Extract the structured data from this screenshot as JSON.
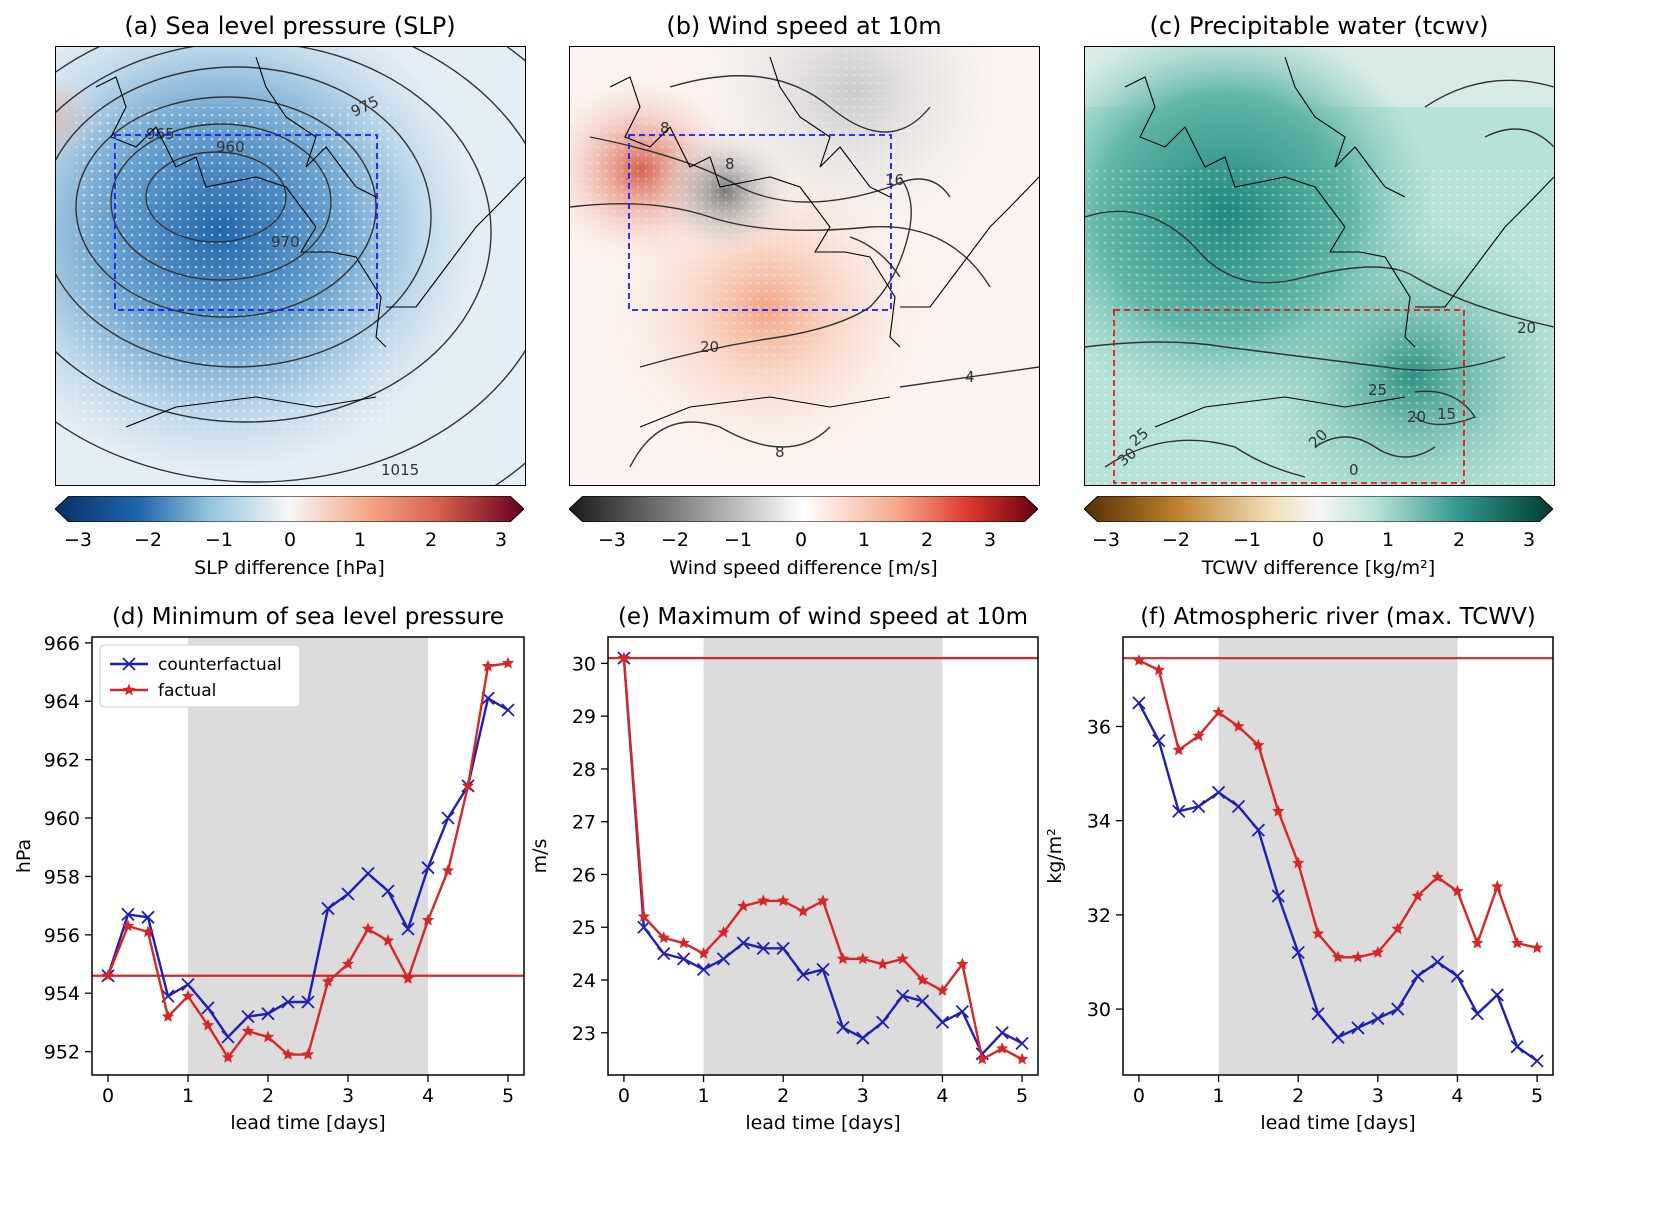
{
  "maps": [
    {
      "title": "(a) Sea level pressure (SLP)",
      "colorbar_label": "SLP difference [hPa]",
      "ticks": [
        "−3",
        "−2",
        "−1",
        "0",
        "1",
        "2",
        "3"
      ],
      "contour_labels": [
        "965",
        "960",
        "975",
        "970",
        "1015"
      ],
      "palette": "rdbu",
      "box_color": "#1a1aff"
    },
    {
      "title": "(b) Wind speed at 10m",
      "colorbar_label": "Wind speed difference [m/s]",
      "ticks": [
        "−3",
        "−2",
        "−1",
        "0",
        "1",
        "2",
        "3"
      ],
      "contour_labels": [
        "8",
        "8",
        "16",
        "20",
        "4",
        "8"
      ],
      "palette": "greyred",
      "box_color": "#1a1aff"
    },
    {
      "title": "(c) Precipitable water (tcwv)",
      "colorbar_label": "TCWV difference [kg/m²]",
      "ticks": [
        "−3",
        "−2",
        "−1",
        "0",
        "1",
        "2",
        "3"
      ],
      "contour_labels": [
        "20",
        "25",
        "20",
        "15",
        "20",
        "25",
        "30",
        "0"
      ],
      "palette": "brbg",
      "box_color": "#e01b1b"
    }
  ],
  "chart_data": [
    {
      "type": "line",
      "title": "(d) Minimum of sea level pressure",
      "xlabel": "lead time [days]",
      "ylabel": "hPa",
      "xlim": [
        -0.2,
        5.2
      ],
      "ylim": [
        951.2,
        966.2
      ],
      "xticks": [
        0,
        1,
        2,
        3,
        4,
        5
      ],
      "yticks": [
        952,
        954,
        956,
        958,
        960,
        962,
        964,
        966
      ],
      "shaded_x": [
        1,
        4
      ],
      "hline": 954.6,
      "legend": "top-left",
      "x": [
        0,
        0.25,
        0.5,
        0.75,
        1,
        1.25,
        1.5,
        1.75,
        2,
        2.25,
        2.5,
        2.75,
        3,
        3.25,
        3.5,
        3.75,
        4,
        4.25,
        4.5,
        4.75,
        5
      ],
      "series": [
        {
          "name": "counterfactual",
          "color": "#1f1fb4",
          "marker": "x",
          "values": [
            954.6,
            956.7,
            956.6,
            953.9,
            954.3,
            953.5,
            952.5,
            953.2,
            953.3,
            953.7,
            953.7,
            956.9,
            957.4,
            958.1,
            957.5,
            956.2,
            958.3,
            960.0,
            961.1,
            964.1,
            963.7
          ]
        },
        {
          "name": "factual",
          "color": "#d62728",
          "marker": "star",
          "values": [
            954.6,
            956.3,
            956.1,
            953.2,
            953.9,
            952.9,
            951.8,
            952.7,
            952.5,
            951.9,
            951.9,
            954.4,
            955.0,
            956.2,
            955.8,
            954.5,
            956.5,
            958.2,
            961.1,
            965.2,
            965.3
          ]
        }
      ]
    },
    {
      "type": "line",
      "title": "(e) Maximum of wind speed at 10m",
      "xlabel": "lead time [days]",
      "ylabel": "m/s",
      "xlim": [
        -0.2,
        5.2
      ],
      "ylim": [
        22.2,
        30.5
      ],
      "xticks": [
        0,
        1,
        2,
        3,
        4,
        5
      ],
      "yticks": [
        23,
        24,
        25,
        26,
        27,
        28,
        29,
        30
      ],
      "shaded_x": [
        1,
        4
      ],
      "hline": 30.1,
      "x": [
        0,
        0.25,
        0.5,
        0.75,
        1,
        1.25,
        1.5,
        1.75,
        2,
        2.25,
        2.5,
        2.75,
        3,
        3.25,
        3.5,
        3.75,
        4,
        4.25,
        4.5,
        4.75,
        5
      ],
      "series": [
        {
          "name": "counterfactual",
          "color": "#1f1fb4",
          "marker": "x",
          "values": [
            30.1,
            25.0,
            24.5,
            24.4,
            24.2,
            24.4,
            24.7,
            24.6,
            24.6,
            24.1,
            24.2,
            23.1,
            22.9,
            23.2,
            23.7,
            23.6,
            23.2,
            23.4,
            22.6,
            23.0,
            22.8
          ]
        },
        {
          "name": "factual",
          "color": "#d62728",
          "marker": "star",
          "values": [
            30.1,
            25.2,
            24.8,
            24.7,
            24.5,
            24.9,
            25.4,
            25.5,
            25.5,
            25.3,
            25.5,
            24.4,
            24.4,
            24.3,
            24.4,
            24.0,
            23.8,
            24.3,
            22.5,
            22.7,
            22.5
          ]
        }
      ]
    },
    {
      "type": "line",
      "title": "(f) Atmospheric river (max. TCWV)",
      "xlabel": "lead time [days]",
      "ylabel": "kg/m²",
      "xlim": [
        -0.2,
        5.2
      ],
      "ylim": [
        28.6,
        37.9
      ],
      "xticks": [
        0,
        1,
        2,
        3,
        4,
        5
      ],
      "yticks": [
        30,
        32,
        34,
        36
      ],
      "shaded_x": [
        1,
        4
      ],
      "hline": 37.45,
      "x": [
        0,
        0.25,
        0.5,
        0.75,
        1,
        1.25,
        1.5,
        1.75,
        2,
        2.25,
        2.5,
        2.75,
        3,
        3.25,
        3.5,
        3.75,
        4,
        4.25,
        4.5,
        4.75,
        5
      ],
      "series": [
        {
          "name": "counterfactual",
          "color": "#1f1fb4",
          "marker": "x",
          "values": [
            36.5,
            35.7,
            34.2,
            34.3,
            34.6,
            34.3,
            33.8,
            32.4,
            31.2,
            29.9,
            29.4,
            29.6,
            29.8,
            30.0,
            30.7,
            31.0,
            30.7,
            29.9,
            30.3,
            29.2,
            28.9
          ]
        },
        {
          "name": "factual",
          "color": "#d62728",
          "marker": "star",
          "values": [
            37.4,
            37.2,
            35.5,
            35.8,
            36.3,
            36.0,
            35.6,
            34.2,
            33.1,
            31.6,
            31.1,
            31.1,
            31.2,
            31.7,
            32.4,
            32.8,
            32.5,
            31.4,
            32.6,
            31.4,
            31.3
          ]
        }
      ]
    }
  ]
}
